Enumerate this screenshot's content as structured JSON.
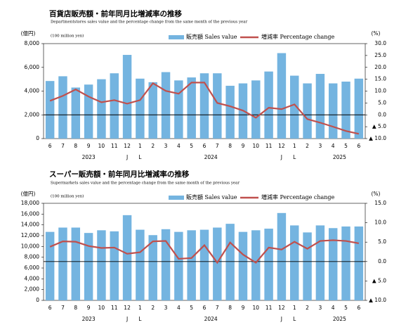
{
  "chart_data": [
    {
      "type": "bar_line",
      "title": "百貨店販売額・前年同月比増減率の推移",
      "subtitle": "Departmentstores sales value and the percentage change from the same month of the previous year",
      "y_label": "(億円)",
      "y_unit_label": "(100 million yen)",
      "y2_label": "(%)",
      "categories": [
        "6",
        "7",
        "8",
        "9",
        "10",
        "11",
        "12",
        "1",
        "2",
        "3",
        "4",
        "5",
        "6",
        "7",
        "8",
        "9",
        "10",
        "11",
        "12",
        "1",
        "2",
        "3",
        "4",
        "5",
        "6"
      ],
      "years": [
        "2023",
        "2024",
        "2025"
      ],
      "year_marks": [
        "J",
        "L",
        "J",
        "L"
      ],
      "series": [
        {
          "name": "販売額 Sales value",
          "color": "#74b4e0",
          "values": [
            4850,
            5250,
            4300,
            4550,
            5000,
            5500,
            7050,
            5050,
            4750,
            5600,
            4900,
            5150,
            5500,
            5500,
            4450,
            4650,
            4900,
            5650,
            7200,
            5300,
            4650,
            5450,
            4650,
            4800,
            5050
          ]
        },
        {
          "name": "増減率 Percentage change",
          "color": "#c0504d",
          "axis": "y2",
          "values": [
            5.9,
            8.0,
            10.7,
            7.7,
            5.3,
            6.2,
            4.7,
            6.2,
            13.3,
            10.1,
            8.9,
            13.6,
            13.6,
            5.0,
            3.6,
            1.8,
            -1.2,
            3.0,
            2.4,
            4.4,
            -1.8,
            -3.3,
            -5.0,
            -6.8,
            -8.0
          ]
        }
      ],
      "ylim": [
        0,
        8000
      ],
      "yticks": [
        0,
        {
          "value": 2000,
          "label": "2,000"
        },
        {
          "value": 4000,
          "label": "4,000"
        },
        {
          "value": 6000,
          "label": "6,000"
        },
        {
          "value": 8000,
          "label": "8,000"
        }
      ],
      "y2lim": [
        -10,
        30
      ],
      "y2ticks": [
        {
          "value": 30,
          "label": "30.0"
        },
        {
          "value": 25,
          "label": "25.0"
        },
        {
          "value": 20,
          "label": "20.0"
        },
        {
          "value": 15,
          "label": "15.0"
        },
        {
          "value": 10,
          "label": "10.0"
        },
        {
          "value": 5,
          "label": "5.0"
        },
        {
          "value": 0,
          "label": "0.0"
        },
        {
          "value": -5,
          "label": "▲ 5.0"
        },
        {
          "value": -10,
          "label": "▲ 10.0"
        }
      ]
    },
    {
      "type": "bar_line",
      "title": "スーパー販売額・前年同月比増減率の推移",
      "subtitle": "Supermarkets sales value and the percentage change from the same month of the previous year",
      "y_label": "(億円)",
      "y_unit_label": "(100 million yen)",
      "y2_label": "(%)",
      "categories": [
        "6",
        "7",
        "8",
        "9",
        "10",
        "11",
        "12",
        "1",
        "2",
        "3",
        "4",
        "5",
        "6",
        "7",
        "8",
        "9",
        "10",
        "11",
        "12",
        "1",
        "2",
        "3",
        "4",
        "5",
        "6"
      ],
      "years": [
        "2023",
        "2024",
        "2025"
      ],
      "year_marks": [
        "J",
        "L",
        "J",
        "L"
      ],
      "series": [
        {
          "name": "販売額 Sales value",
          "color": "#74b4e0",
          "values": [
            12700,
            13500,
            13500,
            12500,
            13000,
            12800,
            15800,
            13100,
            12100,
            13200,
            12700,
            13000,
            13100,
            13500,
            14200,
            12700,
            13000,
            13300,
            16200,
            13900,
            12600,
            13900,
            13400,
            13700,
            13700
          ]
        },
        {
          "name": "増減率 Percentage change",
          "color": "#c0504d",
          "axis": "y2",
          "values": [
            3.8,
            5.2,
            5.1,
            4.0,
            3.5,
            3.6,
            2.0,
            2.4,
            5.2,
            5.3,
            0.7,
            0.9,
            4.2,
            -0.3,
            4.9,
            1.8,
            -0.3,
            3.6,
            3.1,
            5.1,
            3.3,
            5.3,
            5.5,
            5.3,
            4.7
          ]
        }
      ],
      "ylim": [
        0,
        18000
      ],
      "yticks": [
        0,
        {
          "value": 2000,
          "label": "2,000"
        },
        {
          "value": 4000,
          "label": "4,000"
        },
        {
          "value": 6000,
          "label": "6,000"
        },
        {
          "value": 8000,
          "label": "8,000"
        },
        {
          "value": 10000,
          "label": "10,000"
        },
        {
          "value": 12000,
          "label": "12,000"
        },
        {
          "value": 14000,
          "label": "14,000"
        },
        {
          "value": 16000,
          "label": "16,000"
        },
        {
          "value": 18000,
          "label": "18,000"
        }
      ],
      "y2lim": [
        -10,
        15
      ],
      "y2ticks": [
        {
          "value": 15,
          "label": "15.0"
        },
        {
          "value": 10,
          "label": "10.0"
        },
        {
          "value": 5,
          "label": "5.0"
        },
        {
          "value": 0,
          "label": "0.0"
        },
        {
          "value": -5,
          "label": "▲ 5.0"
        },
        {
          "value": -10,
          "label": "▲ 10.0"
        }
      ]
    }
  ]
}
